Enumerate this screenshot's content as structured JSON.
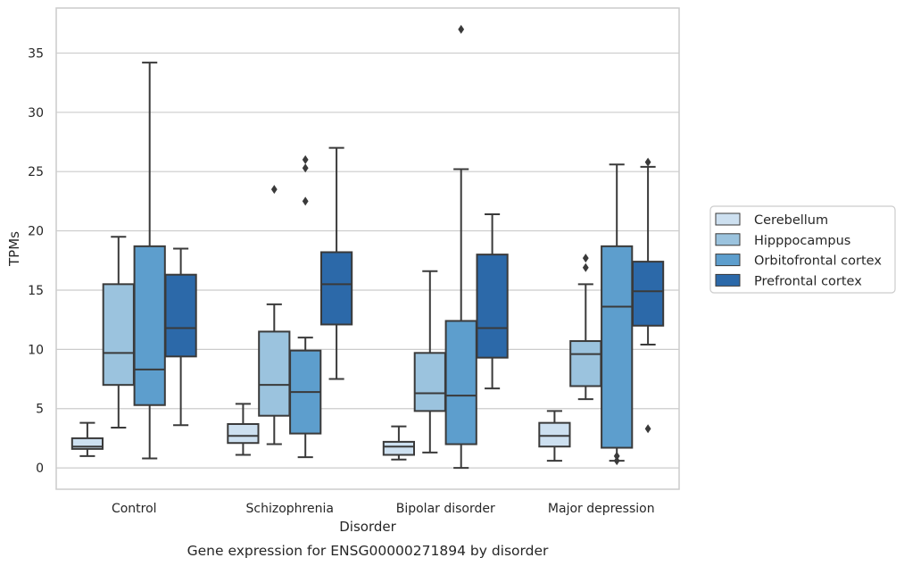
{
  "chart_data": {
    "type": "box",
    "title": "Gene expression for ENSG00000271894 by disorder",
    "xlabel": "Disorder",
    "ylabel": "TPMs",
    "ylim": [
      -1.8,
      38.8
    ],
    "yticks": [
      0,
      5,
      10,
      15,
      20,
      25,
      30,
      35
    ],
    "grid": "horizontal",
    "legend_position": "right",
    "categories": [
      "Control",
      "Schizophrenia",
      "Bipolar disorder",
      "Major depression"
    ],
    "series": [
      {
        "name": "Cerebellum",
        "color": "#cde0f0",
        "boxes": [
          {
            "whislo": 1.0,
            "q1": 1.6,
            "med": 1.8,
            "q3": 2.5,
            "whishi": 3.8,
            "fliers": []
          },
          {
            "whislo": 1.1,
            "q1": 2.1,
            "med": 2.7,
            "q3": 3.7,
            "whishi": 5.4,
            "fliers": []
          },
          {
            "whislo": 0.7,
            "q1": 1.1,
            "med": 1.8,
            "q3": 2.2,
            "whishi": 3.5,
            "fliers": []
          },
          {
            "whislo": 0.6,
            "q1": 1.8,
            "med": 2.7,
            "q3": 3.8,
            "whishi": 4.8,
            "fliers": []
          }
        ]
      },
      {
        "name": "Hipppocampus",
        "color": "#9bc3de",
        "boxes": [
          {
            "whislo": 3.4,
            "q1": 7.0,
            "med": 9.7,
            "q3": 15.5,
            "whishi": 19.5,
            "fliers": []
          },
          {
            "whislo": 2.0,
            "q1": 4.4,
            "med": 7.0,
            "q3": 11.5,
            "whishi": 13.8,
            "fliers": [
              23.5
            ]
          },
          {
            "whislo": 1.3,
            "q1": 4.8,
            "med": 6.3,
            "q3": 9.7,
            "whishi": 16.6,
            "fliers": []
          },
          {
            "whislo": 5.8,
            "q1": 6.9,
            "med": 9.6,
            "q3": 10.7,
            "whishi": 15.5,
            "fliers": [
              16.9,
              17.7
            ]
          }
        ]
      },
      {
        "name": "Orbitofrontal cortex",
        "color": "#5d9ecd",
        "boxes": [
          {
            "whislo": 0.8,
            "q1": 5.3,
            "med": 8.3,
            "q3": 18.7,
            "whishi": 34.2,
            "fliers": []
          },
          {
            "whislo": 0.9,
            "q1": 2.9,
            "med": 6.4,
            "q3": 9.9,
            "whishi": 11.0,
            "fliers": [
              22.5,
              25.3,
              26.0
            ]
          },
          {
            "whislo": 0.0,
            "q1": 2.0,
            "med": 6.1,
            "q3": 12.4,
            "whishi": 25.2,
            "fliers": [
              37.0
            ]
          },
          {
            "whislo": 0.6,
            "q1": 1.7,
            "med": 13.6,
            "q3": 18.7,
            "whishi": 25.6,
            "fliers": [
              0.6,
              1.0
            ]
          }
        ]
      },
      {
        "name": "Prefrontal cortex",
        "color": "#2c69a9",
        "boxes": [
          {
            "whislo": 3.6,
            "q1": 9.4,
            "med": 11.8,
            "q3": 16.3,
            "whishi": 18.5,
            "fliers": []
          },
          {
            "whislo": 7.5,
            "q1": 12.1,
            "med": 15.5,
            "q3": 18.2,
            "whishi": 27.0,
            "fliers": []
          },
          {
            "whislo": 6.7,
            "q1": 9.3,
            "med": 11.8,
            "q3": 18.0,
            "whishi": 21.4,
            "fliers": []
          },
          {
            "whislo": 10.4,
            "q1": 12.0,
            "med": 14.9,
            "q3": 17.4,
            "whishi": 25.4,
            "fliers": [
              3.3,
              25.8
            ]
          }
        ]
      }
    ]
  }
}
